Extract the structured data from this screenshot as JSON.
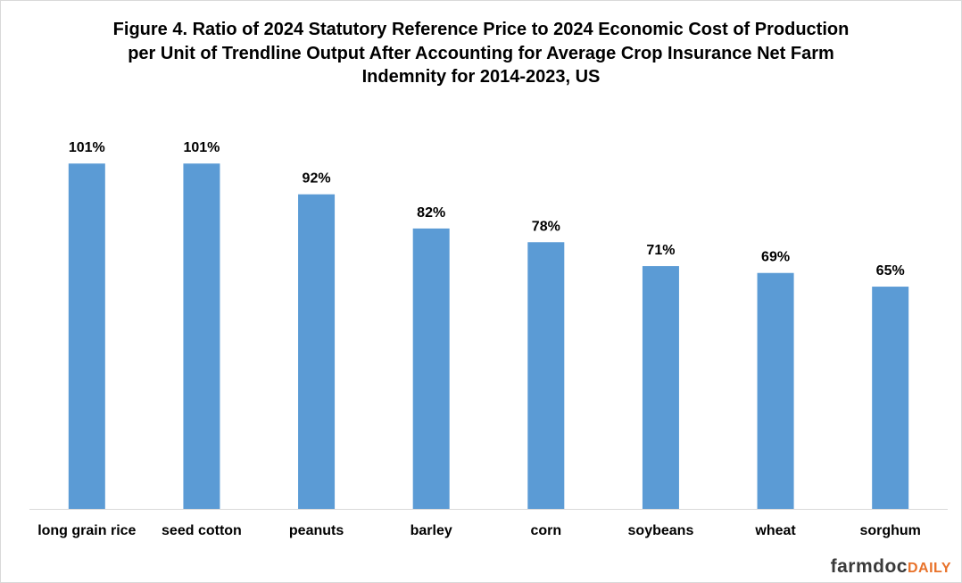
{
  "chart_data": {
    "type": "bar",
    "title": "Figure 4. Ratio of 2024 Statutory Reference Price to 2024 Economic Cost of Production per Unit of Trendline Output After Accounting for Average Crop Insurance Net Farm Indemnity for 2014-2023, US",
    "categories": [
      "long grain rice",
      "seed cotton",
      "peanuts",
      "barley",
      "corn",
      "soybeans",
      "wheat",
      "sorghum"
    ],
    "values": [
      101,
      101,
      92,
      82,
      78,
      71,
      69,
      65
    ],
    "value_labels": [
      "101%",
      "101%",
      "92%",
      "82%",
      "78%",
      "71%",
      "69%",
      "65%"
    ],
    "color": "#5b9bd5"
  },
  "logo": {
    "main": "farmdoc",
    "accent": "DAILY"
  }
}
